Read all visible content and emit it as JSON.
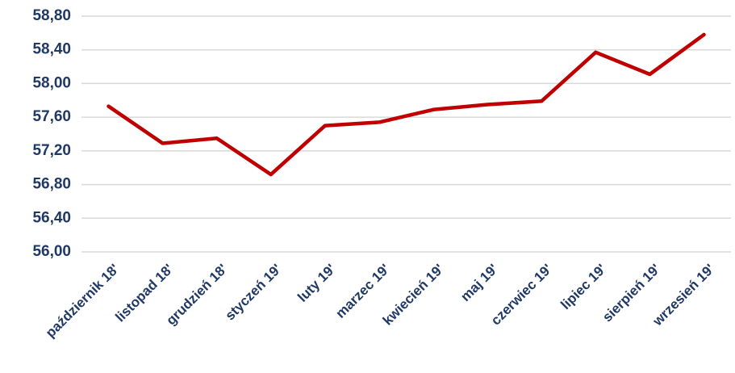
{
  "chart_data": {
    "type": "line",
    "categories": [
      "październik 18'",
      "listopad 18'",
      "grudzień 18'",
      "styczeń 19'",
      "luty 19'",
      "marzec 19'",
      "kwiecień 19'",
      "maj 19'",
      "czerwiec 19'",
      "lipiec 19'",
      "sierpień 19'",
      "wrzesień 19'"
    ],
    "series": [
      {
        "name": null,
        "color": "#c00000",
        "values": [
          57.73,
          57.29,
          57.35,
          56.92,
          57.5,
          57.54,
          57.69,
          57.75,
          57.79,
          58.37,
          58.11,
          58.58
        ]
      }
    ],
    "ylim": [
      56.0,
      58.8
    ],
    "yticks": [
      {
        "value": 56.0,
        "label": "56,00"
      },
      {
        "value": 56.4,
        "label": "56,40"
      },
      {
        "value": 56.8,
        "label": "56,80"
      },
      {
        "value": 57.2,
        "label": "57,20"
      },
      {
        "value": 57.6,
        "label": "57,60"
      },
      {
        "value": 58.0,
        "label": "58,00"
      },
      {
        "value": 58.4,
        "label": "58,40"
      },
      {
        "value": 58.8,
        "label": "58,80"
      }
    ],
    "grid": true
  }
}
